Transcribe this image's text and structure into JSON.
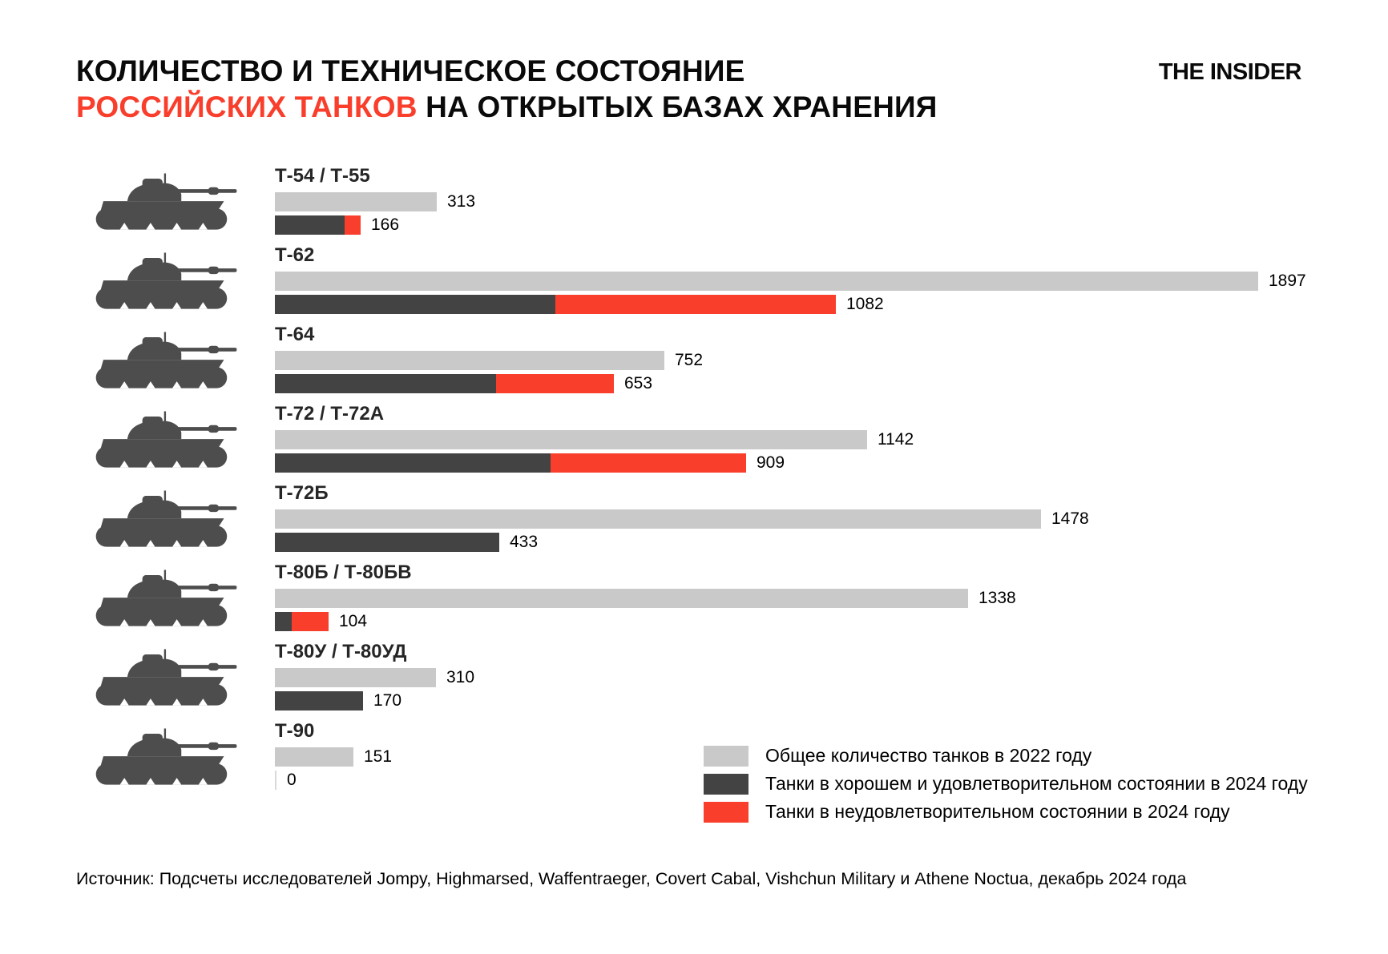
{
  "header": {
    "title_line1": "КОЛИЧЕСТВО И ТЕХНИЧЕСКОЕ СОСТОЯНИЕ",
    "title_line2_red": "РОССИЙСКИХ ТАНКОВ",
    "title_line2_rest": " НА ОТКРЫТЫХ БАЗАХ ХРАНЕНИЯ",
    "logo": "THE INSIDER"
  },
  "colors": {
    "total_2022": "#c9c9c9",
    "good_2024": "#434343",
    "bad_2024": "#f93e2c",
    "accent_red": "#f93e2c",
    "tank_silhouette": "#4d4d4d"
  },
  "chart_data": {
    "type": "bar",
    "orientation": "horizontal",
    "title": "КОЛИЧЕСТВО И ТЕХНИЧЕСКОЕ СОСТОЯНИЕ РОССИЙСКИХ ТАНКОВ НА ОТКРЫТЫХ БАЗАХ ХРАНЕНИЯ",
    "max_value": 1897,
    "value_axis_hidden": true,
    "legend_position": "bottom-right",
    "categories": [
      "Т-54 / Т-55",
      "Т-62",
      "Т-64",
      "Т-72 / Т-72А",
      "Т-72Б",
      "Т-80Б / Т-80БВ",
      "Т-80У / Т-80УД",
      "Т-90"
    ],
    "series": [
      {
        "name": "Общее количество танков в 2022 году",
        "values": [
          313,
          1897,
          752,
          1142,
          1478,
          1338,
          310,
          151
        ]
      },
      {
        "name": "Танки в хорошем и удовлетворительном состоянии в 2024 году",
        "values": [
          135,
          541,
          426,
          532,
          433,
          33,
          170,
          0
        ]
      },
      {
        "name": "Танки в неудовлетворительном состоянии в 2024 году",
        "values": [
          31,
          541,
          227,
          377,
          0,
          71,
          0,
          0
        ]
      }
    ],
    "rows": [
      {
        "name": "Т-54 / Т-55",
        "total_2022": 313,
        "total_2024": 166,
        "good_2024": 135,
        "bad_2024": 31
      },
      {
        "name": "Т-62",
        "total_2022": 1897,
        "total_2024": 1082,
        "good_2024": 541,
        "bad_2024": 541
      },
      {
        "name": "Т-64",
        "total_2022": 752,
        "total_2024": 653,
        "good_2024": 426,
        "bad_2024": 227
      },
      {
        "name": "Т-72 / Т-72А",
        "total_2022": 1142,
        "total_2024": 909,
        "good_2024": 532,
        "bad_2024": 377
      },
      {
        "name": "Т-72Б",
        "total_2022": 1478,
        "total_2024": 433,
        "good_2024": 433,
        "bad_2024": 0
      },
      {
        "name": "Т-80Б / Т-80БВ",
        "total_2022": 1338,
        "total_2024": 104,
        "good_2024": 33,
        "bad_2024": 71
      },
      {
        "name": "Т-80У / Т-80УД",
        "total_2022": 310,
        "total_2024": 170,
        "good_2024": 170,
        "bad_2024": 0
      },
      {
        "name": "Т-90",
        "total_2022": 151,
        "total_2024": 0,
        "good_2024": 0,
        "bad_2024": 0
      }
    ]
  },
  "legend": {
    "items": [
      {
        "label": "Общее количество танков в 2022 году",
        "color_key": "total_2022"
      },
      {
        "label": "Танки в хорошем и удовлетворительном состоянии в 2024 году",
        "color_key": "good_2024"
      },
      {
        "label": "Танки в неудовлетворительном состоянии в 2024 году",
        "color_key": "bad_2024"
      }
    ]
  },
  "source": "Источник: Подсчеты исследователей Jompy, Highmarsed, Waffentraeger, Covert Cabal, Vishchun Military и Athene Noctua, декабрь 2024 года"
}
